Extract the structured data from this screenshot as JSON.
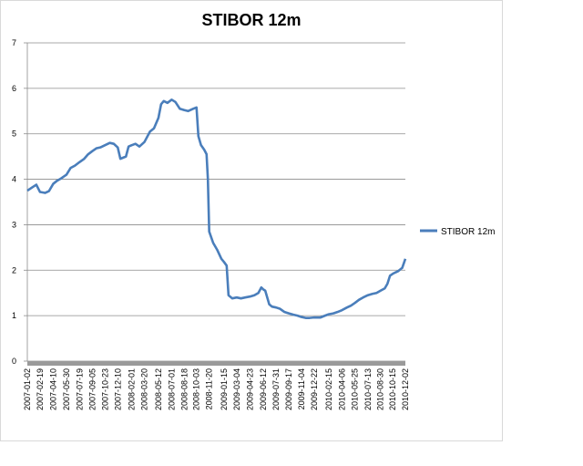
{
  "chart_data": {
    "type": "line",
    "title": "STIBOR 12m",
    "xlabel": "",
    "ylabel": "",
    "ylim": [
      0,
      7
    ],
    "yticks": [
      "0",
      "1",
      "2",
      "3",
      "4",
      "5",
      "6",
      "7"
    ],
    "grid": "horizontal",
    "legend": "right",
    "x": [
      "2007-01-02",
      "2007-02-19",
      "2007-04-10",
      "2007-05-30",
      "2007-07-19",
      "2007-09-05",
      "2007-10-23",
      "2007-12-10",
      "2008-02-01",
      "2008-03-20",
      "2008-05-12",
      "2008-07-01",
      "2008-08-18",
      "2008-10-03",
      "2008-11-20",
      "2009-01-15",
      "2009-03-04",
      "2009-04-23",
      "2009-06-12",
      "2009-07-31",
      "2009-09-17",
      "2009-11-04",
      "2009-12-22",
      "2010-02-15",
      "2010-04-06",
      "2010-05-25",
      "2010-07-13",
      "2010-08-30",
      "2010-10-15",
      "2010-12-02"
    ],
    "series": [
      {
        "name": "STIBOR 12m",
        "color": "#4a7ebb",
        "points": [
          [
            "2007-01-02",
            3.75
          ],
          [
            "2007-01-20",
            3.82
          ],
          [
            "2007-02-05",
            3.88
          ],
          [
            "2007-02-19",
            3.72
          ],
          [
            "2007-03-10",
            3.7
          ],
          [
            "2007-03-25",
            3.74
          ],
          [
            "2007-04-10",
            3.9
          ],
          [
            "2007-04-25",
            3.97
          ],
          [
            "2007-05-10",
            4.02
          ],
          [
            "2007-05-30",
            4.1
          ],
          [
            "2007-06-15",
            4.25
          ],
          [
            "2007-07-01",
            4.3
          ],
          [
            "2007-07-19",
            4.38
          ],
          [
            "2007-08-05",
            4.45
          ],
          [
            "2007-08-20",
            4.55
          ],
          [
            "2007-09-05",
            4.62
          ],
          [
            "2007-09-20",
            4.68
          ],
          [
            "2007-10-05",
            4.7
          ],
          [
            "2007-10-23",
            4.75
          ],
          [
            "2007-11-10",
            4.8
          ],
          [
            "2007-11-25",
            4.78
          ],
          [
            "2007-12-10",
            4.7
          ],
          [
            "2007-12-20",
            4.45
          ],
          [
            "2008-01-10",
            4.5
          ],
          [
            "2008-01-20",
            4.72
          ],
          [
            "2008-02-01",
            4.75
          ],
          [
            "2008-02-15",
            4.78
          ],
          [
            "2008-03-01",
            4.72
          ],
          [
            "2008-03-20",
            4.82
          ],
          [
            "2008-04-10",
            5.05
          ],
          [
            "2008-04-25",
            5.12
          ],
          [
            "2008-05-12",
            5.35
          ],
          [
            "2008-05-22",
            5.65
          ],
          [
            "2008-06-01",
            5.72
          ],
          [
            "2008-06-15",
            5.68
          ],
          [
            "2008-07-01",
            5.75
          ],
          [
            "2008-07-15",
            5.7
          ],
          [
            "2008-08-01",
            5.55
          ],
          [
            "2008-08-18",
            5.52
          ],
          [
            "2008-09-01",
            5.5
          ],
          [
            "2008-09-20",
            5.55
          ],
          [
            "2008-10-03",
            5.58
          ],
          [
            "2008-10-10",
            4.95
          ],
          [
            "2008-10-20",
            4.75
          ],
          [
            "2008-11-01",
            4.65
          ],
          [
            "2008-11-10",
            4.55
          ],
          [
            "2008-11-15",
            4.0
          ],
          [
            "2008-11-20",
            2.85
          ],
          [
            "2008-12-05",
            2.6
          ],
          [
            "2008-12-20",
            2.45
          ],
          [
            "2009-01-05",
            2.25
          ],
          [
            "2009-01-15",
            2.18
          ],
          [
            "2009-01-25",
            2.1
          ],
          [
            "2009-02-01",
            1.45
          ],
          [
            "2009-02-15",
            1.38
          ],
          [
            "2009-03-04",
            1.4
          ],
          [
            "2009-03-20",
            1.38
          ],
          [
            "2009-04-05",
            1.4
          ],
          [
            "2009-04-23",
            1.42
          ],
          [
            "2009-05-10",
            1.45
          ],
          [
            "2009-05-25",
            1.5
          ],
          [
            "2009-06-05",
            1.62
          ],
          [
            "2009-06-12",
            1.58
          ],
          [
            "2009-06-20",
            1.55
          ],
          [
            "2009-07-05",
            1.25
          ],
          [
            "2009-07-15",
            1.2
          ],
          [
            "2009-07-31",
            1.18
          ],
          [
            "2009-08-15",
            1.15
          ],
          [
            "2009-09-01",
            1.08
          ],
          [
            "2009-09-17",
            1.05
          ],
          [
            "2009-10-05",
            1.02
          ],
          [
            "2009-10-20",
            1.0
          ],
          [
            "2009-11-04",
            0.97
          ],
          [
            "2009-11-20",
            0.95
          ],
          [
            "2009-12-05",
            0.95
          ],
          [
            "2009-12-22",
            0.96
          ],
          [
            "2010-01-15",
            0.96
          ],
          [
            "2010-02-01",
            1.0
          ],
          [
            "2010-02-15",
            1.03
          ],
          [
            "2010-03-05",
            1.05
          ],
          [
            "2010-03-20",
            1.08
          ],
          [
            "2010-04-06",
            1.12
          ],
          [
            "2010-04-25",
            1.18
          ],
          [
            "2010-05-10",
            1.22
          ],
          [
            "2010-05-25",
            1.28
          ],
          [
            "2010-06-10",
            1.35
          ],
          [
            "2010-06-25",
            1.4
          ],
          [
            "2010-07-13",
            1.45
          ],
          [
            "2010-07-30",
            1.48
          ],
          [
            "2010-08-15",
            1.5
          ],
          [
            "2010-08-30",
            1.55
          ],
          [
            "2010-09-15",
            1.6
          ],
          [
            "2010-09-25",
            1.7
          ],
          [
            "2010-10-05",
            1.88
          ],
          [
            "2010-10-15",
            1.92
          ],
          [
            "2010-10-25",
            1.95
          ],
          [
            "2010-11-05",
            1.98
          ],
          [
            "2010-11-20",
            2.05
          ],
          [
            "2010-12-02",
            2.25
          ]
        ]
      }
    ]
  }
}
